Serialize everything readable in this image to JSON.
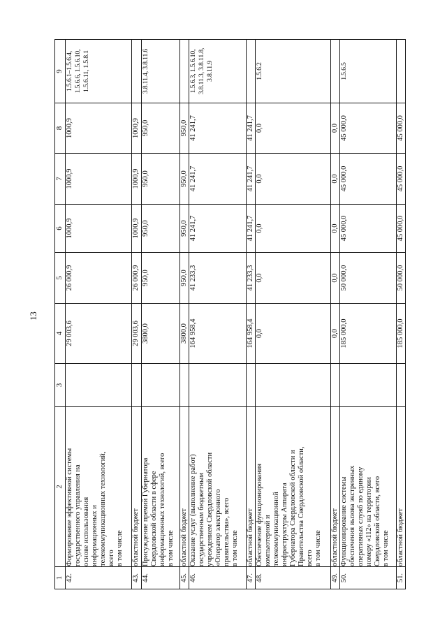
{
  "page": {
    "number": "13"
  },
  "table": {
    "header": [
      "1",
      "2",
      "3",
      "4",
      "5",
      "6",
      "7",
      "8",
      "9"
    ],
    "rows": [
      {
        "num": "42.",
        "desc": "Формирование эффективной системы\nгосударственного управления на\nоснове использования\nинформационных и\nтелекоммуникационных технологий,\nвсего\nв том числе",
        "c3": "",
        "c4": "29 003,6",
        "c5": "26 000,9",
        "c6": "1000,9",
        "c7": "1000,9",
        "c8": "1000,9",
        "c9": "1.5.6.1–1.5.6.4,\n1.5.6.6, 1.5.6.10,\n1.5.6.11, 1.5.8.1"
      },
      {
        "num": "43.",
        "desc": "областной бюджет",
        "c3": "",
        "c4": "29 003,6",
        "c5": "26 000,9",
        "c6": "1000,9",
        "c7": "1000,9",
        "c8": "1000,9",
        "c9": ""
      },
      {
        "num": "44.",
        "desc": "Присуждение премий Губернатора\nСвердловской области в сфере\nинформационных технологий, всего\nв том числе",
        "c3": "",
        "c4": "3800,0",
        "c5": "950,0",
        "c6": "950,0",
        "c7": "950,0",
        "c8": "950,0",
        "c9": "3.8.11.4, 3.8.11.6"
      },
      {
        "num": "45.",
        "desc": "областной бюджет",
        "c3": "",
        "c4": "3800,0",
        "c5": "950,0",
        "c6": "950,0",
        "c7": "950,0",
        "c8": "950,0",
        "c9": ""
      },
      {
        "num": "46.",
        "desc": "Оказание услуг (выполнение работ)\nгосударственным бюджетным\nучреждением Свердловской области\n«Оператор электронного\nправительства», всего\nв том числе",
        "c3": "",
        "c4": "164 958,4",
        "c5": "41 233,3",
        "c6": "41 241,7",
        "c7": "41 241,7",
        "c8": "41 241,7",
        "c9": "1.5.6.3, 1.5.6.10,\n3.8.11.3, 3.8.11.8,\n3.8.11.9"
      },
      {
        "num": "47.",
        "desc": "областной бюджет",
        "c3": "",
        "c4": "164 958,4",
        "c5": "41 233,3",
        "c6": "41 241,7",
        "c7": "41 241,7",
        "c8": "41 241,7",
        "c9": ""
      },
      {
        "num": "48.",
        "desc": "Обеспечение функционирования\nкомпьютерной и\nтелекоммуникационной\nинфраструктуры Аппарата\nГубернатора Свердловской области и\nПравительства Свердловской области,\nвсего\nв том числе",
        "c3": "",
        "c4": "0,0",
        "c5": "0,0",
        "c6": "0,0",
        "c7": "0,0",
        "c8": "0,0",
        "c9": "1.5.6.2"
      },
      {
        "num": "49.",
        "desc": "областной бюджет",
        "c3": "",
        "c4": "0,0",
        "c5": "0,0",
        "c6": "0,0",
        "c7": "0,0",
        "c8": "0,0",
        "c9": ""
      },
      {
        "num": "50.",
        "desc": "Функционирование системы\nобеспечения вызова экстренных\nоперативных служб по единому\nномеру «112» на территории\nСвердловской области, всего\nв том числе",
        "c3": "",
        "c4": "185 000,0",
        "c5": "50 000,0",
        "c6": "45 000,0",
        "c7": "45 000,0",
        "c8": "45 000,0",
        "c9": "1.5.6.5"
      },
      {
        "num": "51.",
        "desc": "областной бюджет",
        "c3": "",
        "c4": "185 000,0",
        "c5": "50 000,0",
        "c6": "45 000,0",
        "c7": "45 000,0",
        "c8": "45 000,0",
        "c9": ""
      }
    ]
  }
}
